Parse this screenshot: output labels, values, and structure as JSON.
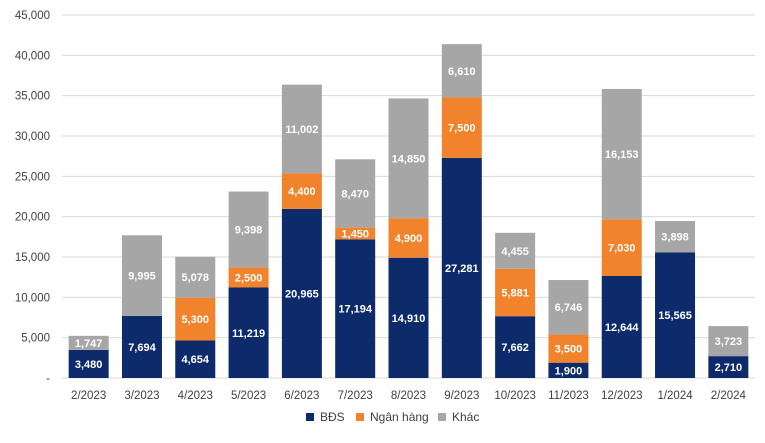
{
  "chart_data": {
    "type": "bar",
    "stacked": true,
    "categories": [
      "2/2023",
      "3/2023",
      "4/2023",
      "5/2023",
      "6/2023",
      "7/2023",
      "8/2023",
      "9/2023",
      "10/2023",
      "11/2023",
      "12/2023",
      "1/2024",
      "2/2024"
    ],
    "series": [
      {
        "name": "BĐS",
        "color": "#0d2a6b",
        "values": [
          3480,
          7694,
          4654,
          11219,
          20965,
          17194,
          14910,
          27281,
          7662,
          1900,
          12644,
          15565,
          2710
        ]
      },
      {
        "name": "Ngân hàng",
        "color": "#f0832c",
        "values": [
          0,
          0,
          5300,
          2500,
          4400,
          1450,
          4900,
          7500,
          5881,
          3500,
          7030,
          0,
          0
        ]
      },
      {
        "name": "Khác",
        "color": "#a6a6a6",
        "values": [
          1747,
          9995,
          5078,
          9398,
          11002,
          8470,
          14850,
          6610,
          4455,
          6746,
          16153,
          3898,
          3723
        ]
      }
    ],
    "data_labels": [
      [
        "3,480",
        "7,694",
        "4,654",
        "11,219",
        "20,965",
        "17,194",
        "14,910",
        "27,281",
        "7,662",
        "1,900",
        "12,644",
        "15,565",
        "2,710"
      ],
      [
        "",
        "",
        "5,300",
        "2,500",
        "4,400",
        "1,450",
        "4,900",
        "7,500",
        "5,881",
        "3,500",
        "7,030",
        "",
        ""
      ],
      [
        "1,747",
        "9,995",
        "5,078",
        "9,398",
        "11,002",
        "8,470",
        "14,850",
        "6,610",
        "4,455",
        "6,746",
        "16,153",
        "3,898",
        "3,723"
      ]
    ],
    "ylim": [
      0,
      45000
    ],
    "yticks": [
      0,
      5000,
      10000,
      15000,
      20000,
      25000,
      30000,
      35000,
      40000,
      45000
    ],
    "ytick_labels": [
      "-",
      "5,000",
      "10,000",
      "15,000",
      "20,000",
      "25,000",
      "30,000",
      "35,000",
      "40,000",
      "45,000"
    ],
    "grid": true,
    "legend_position": "bottom",
    "title": "",
    "xlabel": "",
    "ylabel": ""
  }
}
